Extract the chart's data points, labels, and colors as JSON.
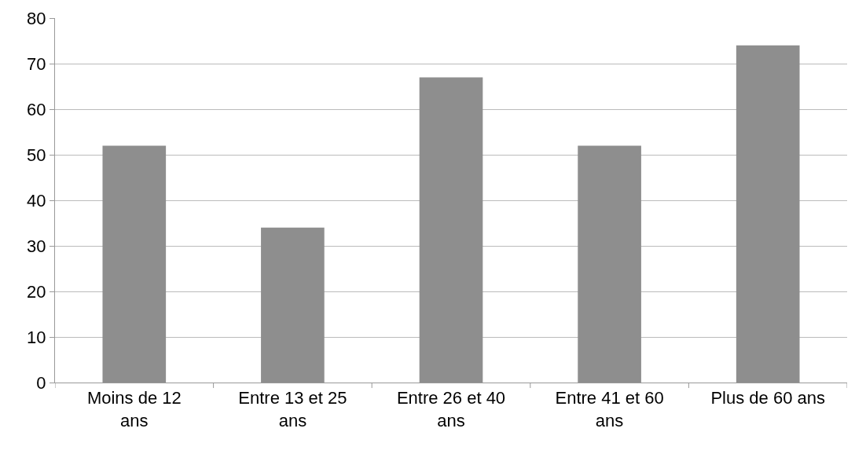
{
  "chart_data": {
    "type": "bar",
    "categories": [
      "Moins de 12 ans",
      "Entre 13 et 25 ans",
      "Entre 26 et 40 ans",
      "Entre 41 et 60 ans",
      "Plus de 60 ans"
    ],
    "values": [
      52,
      34,
      67,
      52,
      74
    ],
    "color": "#8e8e8e",
    "ylim": [
      0,
      80
    ],
    "yticks": [
      0,
      10,
      20,
      30,
      40,
      50,
      60,
      70,
      80
    ],
    "grid": "y"
  }
}
